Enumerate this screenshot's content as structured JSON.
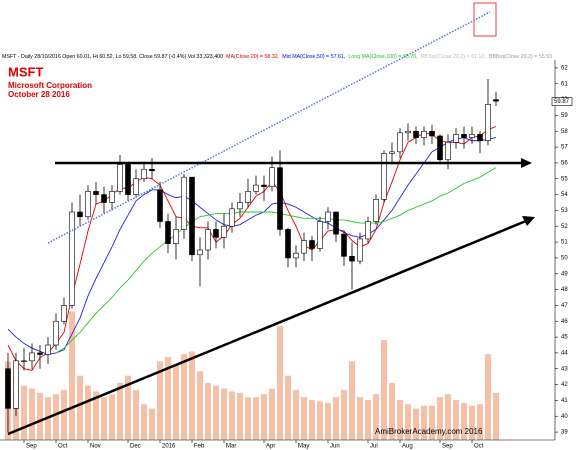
{
  "chart_data": {
    "type": "candlestick",
    "header": [
      {
        "text": "MSFT - Daily 28/10/2016 Open 60.01, Hi 60.52, Lo 59.58, Close 59.87 (-0.4%) Vol 33,323,400",
        "color": "#000000"
      },
      {
        "text": "MA(Close,20) = 58.32,",
        "color": "#e00000"
      },
      {
        "text": "Mid MA(Close,50) = 57.61,",
        "color": "#0000e0"
      },
      {
        "text": "Long MA(Close,100) = 55.70,",
        "color": "#22bb22"
      },
      {
        "text": "BBTop(Close,20,2) = 61.12,",
        "color": "#bbbbbb"
      },
      {
        "text": "BBBot(Close,20,2) = 55.53",
        "color": "#999999"
      }
    ],
    "ticker": "MSFT",
    "company": "Microsoft Corporation",
    "date_label": "October 28 2016",
    "watermark": "AmiBrokerAcademy.com  2016",
    "last_close": 59.87,
    "categories": [
      null,
      null,
      "Sep",
      null,
      null,
      null,
      "Oct",
      null,
      null,
      null,
      "Nov",
      null,
      null,
      null,
      null,
      "Dec",
      null,
      null,
      null,
      "2016",
      null,
      null,
      null,
      "Feb",
      null,
      null,
      null,
      "Mar",
      null,
      null,
      null,
      null,
      "Apr",
      null,
      null,
      null,
      "May",
      null,
      null,
      null,
      "Jun",
      null,
      null,
      null,
      null,
      "Jul",
      null,
      null,
      null,
      "Aug",
      null,
      null,
      null,
      null,
      "Sep",
      null,
      null,
      null,
      "Oct",
      null,
      null,
      null
    ],
    "open": [
      43.0,
      40.5,
      43.5,
      43.5,
      44.0,
      43.9,
      44.5,
      46.0,
      47.0,
      52.9,
      52.6,
      54.2,
      54.0,
      53.5,
      54.2,
      55.9,
      54.0,
      55.0,
      55.6,
      54.3,
      52.3,
      50.9,
      51.8,
      55.1,
      50.2,
      50.5,
      51.8,
      51.3,
      52.0,
      53.1,
      53.5,
      54.2,
      54.6,
      54.5,
      55.7,
      51.8,
      50.0,
      50.3,
      51.1,
      50.6,
      52.3,
      52.9,
      51.5,
      50.1,
      49.8,
      51.2,
      52.3,
      53.7,
      56.6,
      56.7,
      57.9,
      58.0,
      57.6,
      58.0,
      57.7,
      56.2,
      57.3,
      57.8,
      57.6,
      57.8,
      57.4,
      60.0
    ],
    "high": [
      44.0,
      44.0,
      44.3,
      44.6,
      44.5,
      45.0,
      46.5,
      47.5,
      53.5,
      54.0,
      54.6,
      54.8,
      54.5,
      54.6,
      56.5,
      56.0,
      55.6,
      56.1,
      56.3,
      54.8,
      52.8,
      52.6,
      55.3,
      55.1,
      51.3,
      52.3,
      52.3,
      52.8,
      53.5,
      54.1,
      55.0,
      55.2,
      55.2,
      56.4,
      56.8,
      51.9,
      50.8,
      51.6,
      51.4,
      52.6,
      53.2,
      52.9,
      51.7,
      51.0,
      51.6,
      52.6,
      54.0,
      56.8,
      57.3,
      58.2,
      58.5,
      58.3,
      58.3,
      58.4,
      57.8,
      57.8,
      58.2,
      58.3,
      58.3,
      58.0,
      61.3,
      60.5
    ],
    "low": [
      39.0,
      40.0,
      42.9,
      43.0,
      43.0,
      43.3,
      44.2,
      45.8,
      46.8,
      52.0,
      52.4,
      53.4,
      52.8,
      53.0,
      54.0,
      53.6,
      53.8,
      54.8,
      55.0,
      51.9,
      50.3,
      49.9,
      51.2,
      49.8,
      48.2,
      49.9,
      50.6,
      50.6,
      51.6,
      52.6,
      53.2,
      54.0,
      53.6,
      54.2,
      51.4,
      49.4,
      49.4,
      49.8,
      49.8,
      50.4,
      51.8,
      51.0,
      49.5,
      48.0,
      49.6,
      50.9,
      52.1,
      53.5,
      55.9,
      56.3,
      57.4,
      57.2,
      57.1,
      57.2,
      55.9,
      55.6,
      56.9,
      56.9,
      57.2,
      56.6,
      57.1,
      59.6
    ],
    "close": [
      40.5,
      43.5,
      43.5,
      44.0,
      43.9,
      44.5,
      46.0,
      47.0,
      52.9,
      52.6,
      54.2,
      54.0,
      53.5,
      54.2,
      55.9,
      54.0,
      55.0,
      55.6,
      55.5,
      52.3,
      50.9,
      51.8,
      55.1,
      50.2,
      50.5,
      51.8,
      51.3,
      52.0,
      53.1,
      53.5,
      54.2,
      54.6,
      54.5,
      55.7,
      51.8,
      50.0,
      50.3,
      51.1,
      50.6,
      52.3,
      52.9,
      51.5,
      50.1,
      49.8,
      51.2,
      52.3,
      53.7,
      56.6,
      56.7,
      57.9,
      58.0,
      57.6,
      58.0,
      57.7,
      56.2,
      57.3,
      57.8,
      57.6,
      57.8,
      57.4,
      59.7,
      59.9
    ],
    "volume": [
      55,
      45,
      38,
      36,
      33,
      30,
      32,
      35,
      90,
      45,
      38,
      34,
      30,
      32,
      40,
      45,
      35,
      25,
      22,
      55,
      58,
      52,
      60,
      62,
      48,
      40,
      38,
      36,
      34,
      33,
      30,
      30,
      32,
      36,
      80,
      45,
      35,
      30,
      28,
      27,
      26,
      30,
      35,
      55,
      30,
      28,
      32,
      70,
      40,
      28,
      25,
      22,
      24,
      24,
      30,
      32,
      28,
      26,
      24,
      25,
      60,
      33
    ],
    "vlim": [
      0,
      140
    ],
    "volume_color": "#f5c0a8",
    "up_color": "#ffffff",
    "down_color": "#000000",
    "lines": [
      {
        "color": "#e00000",
        "values": [
          44.5,
          43.5,
          43.0,
          42.9,
          43.7,
          44.0,
          44.6,
          45.3,
          47.6,
          49.6,
          51.7,
          53.4,
          53.6,
          54.0,
          54.4,
          54.4,
          54.8,
          55.1,
          55.0,
          54.6,
          53.6,
          52.6,
          52.5,
          52.0,
          51.9,
          51.9,
          51.0,
          51.4,
          52.1,
          52.5,
          53.2,
          53.9,
          54.2,
          54.8,
          54.2,
          53.0,
          52.0,
          50.8,
          50.5,
          51.1,
          51.7,
          51.8,
          51.7,
          51.1,
          50.7,
          50.9,
          51.8,
          53.5,
          54.8,
          56.2,
          57.3,
          57.6,
          57.9,
          57.8,
          57.4,
          57.3,
          57.3,
          57.2,
          57.6,
          57.7,
          58.1,
          58.3
        ]
      },
      {
        "color": "#2020e0",
        "values": [
          45.5,
          45.0,
          44.6,
          44.3,
          44.1,
          43.9,
          44.0,
          44.2,
          45.2,
          46.2,
          47.6,
          48.7,
          49.7,
          50.7,
          51.8,
          52.7,
          53.6,
          54.0,
          54.3,
          54.3,
          54.0,
          53.8,
          53.9,
          53.6,
          53.2,
          52.8,
          52.4,
          52.1,
          52.0,
          52.1,
          52.4,
          52.7,
          52.9,
          53.4,
          53.5,
          53.4,
          53.2,
          52.9,
          52.6,
          52.3,
          52.2,
          51.9,
          51.6,
          51.4,
          51.3,
          51.5,
          51.8,
          52.4,
          53.0,
          53.8,
          54.6,
          55.3,
          56.0,
          56.7,
          57.0,
          57.3,
          57.5,
          57.6,
          57.4,
          57.4,
          57.5,
          57.6
        ]
      },
      {
        "color": "#22cc22",
        "values": [
          null,
          null,
          null,
          null,
          null,
          null,
          44.0,
          44.3,
          44.8,
          45.3,
          45.9,
          46.5,
          47.0,
          47.5,
          48.1,
          48.6,
          49.2,
          49.8,
          50.3,
          50.7,
          51.1,
          51.5,
          51.9,
          52.3,
          52.6,
          52.7,
          52.8,
          52.8,
          52.8,
          52.9,
          52.9,
          52.9,
          52.9,
          52.9,
          52.8,
          52.7,
          52.6,
          52.5,
          52.5,
          52.5,
          52.5,
          52.4,
          52.4,
          52.3,
          52.2,
          52.2,
          52.2,
          52.3,
          52.5,
          52.7,
          53.0,
          53.2,
          53.4,
          53.6,
          53.9,
          54.1,
          54.4,
          54.7,
          54.9,
          55.1,
          55.4,
          55.7
        ]
      }
    ],
    "ylim": [
      38.5,
      62.5
    ],
    "yticks": [
      39,
      40,
      41,
      42,
      43,
      44,
      45,
      46,
      47,
      48,
      49,
      50,
      51,
      52,
      53,
      54,
      55,
      56,
      57,
      58,
      59,
      60,
      61,
      62
    ],
    "grid": false
  }
}
